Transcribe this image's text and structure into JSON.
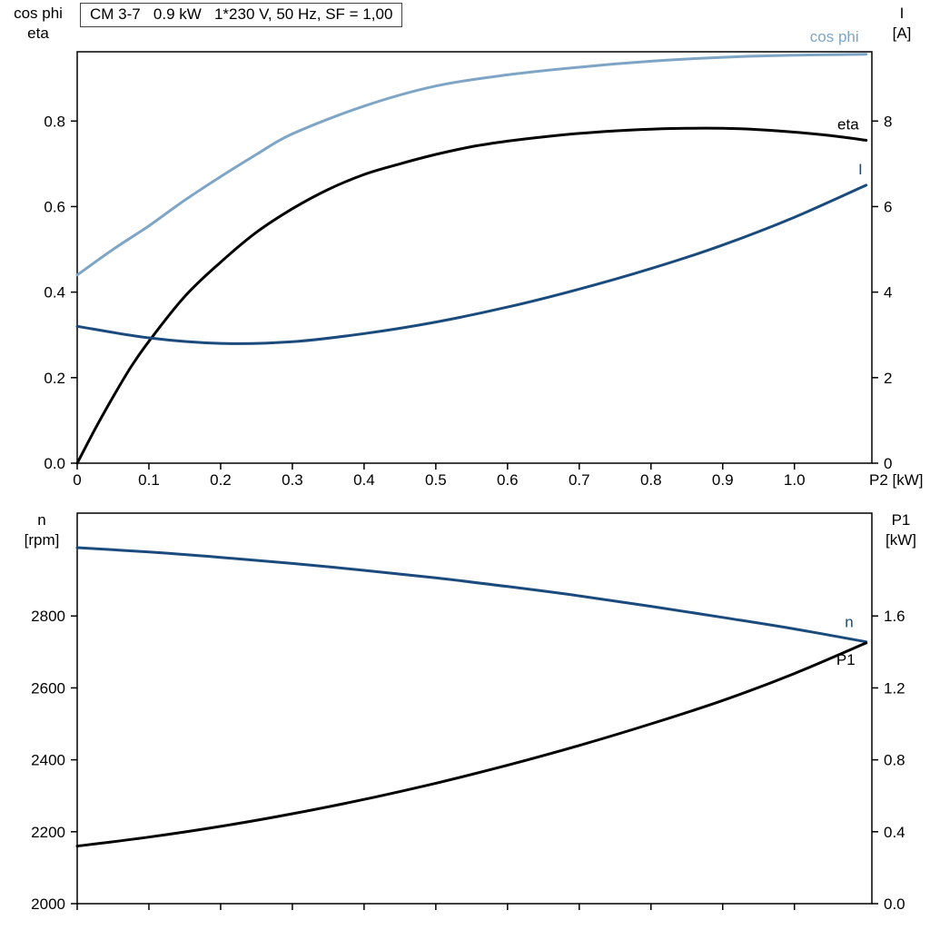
{
  "colors": {
    "light_blue": "#7fa5c6",
    "dark_blue": "#1b4b7c",
    "black": "#000000",
    "axis": "#000000"
  },
  "chart_data": [
    {
      "type": "line",
      "title": "CM 3-7   0.9 kW   1*230 V, 50 Hz, SF = 1,00",
      "x_label": "P2 [kW]",
      "left_axis_label": [
        "cos phi",
        "eta"
      ],
      "right_axis_label": [
        "I",
        "[A]"
      ],
      "xlim": [
        0,
        1.108
      ],
      "x_ticks": [
        0,
        0.1,
        0.2,
        0.3,
        0.4,
        0.5,
        0.6,
        0.7,
        0.8,
        0.9,
        1.0
      ],
      "x_tick_labels": [
        "0",
        "0.1",
        "0.2",
        "0.3",
        "0.4",
        "0.5",
        "0.6",
        "0.7",
        "0.8",
        "0.9",
        "1.0"
      ],
      "left_ylim": [
        0,
        0.962
      ],
      "left_ticks": [
        0.0,
        0.2,
        0.4,
        0.6,
        0.8
      ],
      "left_tick_labels": [
        "0.0",
        "0.2",
        "0.4",
        "0.6",
        "0.8"
      ],
      "right_ylim": [
        0,
        9.62
      ],
      "right_ticks": [
        0,
        2,
        4,
        6,
        8
      ],
      "right_tick_labels": [
        "0",
        "2",
        "4",
        "6",
        "8"
      ],
      "grid": false,
      "series": [
        {
          "name": "cos phi",
          "axis": "left",
          "color": "#7fa5c6",
          "x": [
            0,
            0.05,
            0.1,
            0.15,
            0.2,
            0.25,
            0.3,
            0.4,
            0.5,
            0.6,
            0.7,
            0.8,
            0.9,
            1.0,
            1.1
          ],
          "y": [
            0.44,
            0.5,
            0.555,
            0.615,
            0.67,
            0.722,
            0.77,
            0.835,
            0.882,
            0.908,
            0.926,
            0.94,
            0.949,
            0.954,
            0.956
          ]
        },
        {
          "name": "eta",
          "axis": "left",
          "color": "#000000",
          "x": [
            0,
            0.025,
            0.05,
            0.075,
            0.1,
            0.15,
            0.2,
            0.25,
            0.3,
            0.35,
            0.4,
            0.45,
            0.5,
            0.55,
            0.6,
            0.65,
            0.7,
            0.75,
            0.8,
            0.85,
            0.9,
            0.95,
            1.0,
            1.05,
            1.1
          ],
          "y": [
            0,
            0.08,
            0.155,
            0.225,
            0.285,
            0.39,
            0.47,
            0.54,
            0.595,
            0.64,
            0.675,
            0.7,
            0.722,
            0.74,
            0.753,
            0.763,
            0.771,
            0.777,
            0.781,
            0.783,
            0.783,
            0.78,
            0.774,
            0.766,
            0.755
          ]
        },
        {
          "name": "I",
          "axis": "right",
          "color": "#1b4b7c",
          "x": [
            0,
            0.1,
            0.2,
            0.3,
            0.4,
            0.5,
            0.6,
            0.7,
            0.8,
            0.9,
            1.0,
            1.1
          ],
          "y": [
            3.2,
            2.93,
            2.8,
            2.84,
            3.03,
            3.3,
            3.65,
            4.07,
            4.55,
            5.1,
            5.75,
            6.5
          ]
        }
      ]
    },
    {
      "type": "line",
      "title": "",
      "x_label": "",
      "left_axis_label": [
        "n",
        "[rpm]"
      ],
      "right_axis_label": [
        "P1",
        "[kW]"
      ],
      "xlim": [
        0,
        1.108
      ],
      "x_ticks": [
        0,
        0.1,
        0.2,
        0.3,
        0.4,
        0.5,
        0.6,
        0.7,
        0.8,
        0.9,
        1.0
      ],
      "x_tick_labels": [],
      "left_ylim": [
        2000,
        3086
      ],
      "left_ticks": [
        2000,
        2200,
        2400,
        2600,
        2800
      ],
      "left_tick_labels": [
        "2000",
        "2200",
        "2400",
        "2600",
        "2800"
      ],
      "right_ylim": [
        0,
        2.172
      ],
      "right_ticks": [
        0.0,
        0.4,
        0.8,
        1.2,
        1.6
      ],
      "right_tick_labels": [
        "0.0",
        "0.4",
        "0.8",
        "1.2",
        "1.6"
      ],
      "grid": false,
      "series": [
        {
          "name": "n",
          "axis": "left",
          "color": "#1b4b7c",
          "x": [
            0,
            0.1,
            0.2,
            0.3,
            0.4,
            0.5,
            0.6,
            0.7,
            0.8,
            0.9,
            1.0,
            1.1
          ],
          "y": [
            2990,
            2978,
            2963,
            2946,
            2927,
            2906,
            2882,
            2856,
            2827,
            2796,
            2764,
            2728
          ]
        },
        {
          "name": "P1",
          "axis": "left_map_right",
          "color": "#000000",
          "x": [
            0,
            0.1,
            0.2,
            0.3,
            0.4,
            0.5,
            0.6,
            0.7,
            0.8,
            0.9,
            1.0,
            1.1
          ],
          "y": [
            0.32,
            0.37,
            0.43,
            0.5,
            0.58,
            0.67,
            0.77,
            0.88,
            1.0,
            1.13,
            1.28,
            1.45
          ]
        }
      ]
    }
  ]
}
